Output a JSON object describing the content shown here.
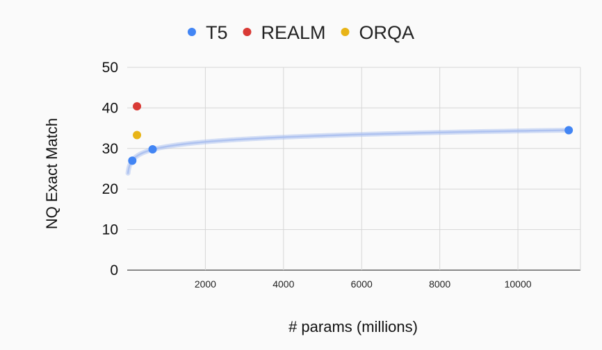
{
  "chart_data": {
    "type": "scatter",
    "xlabel": "# params (millions)",
    "ylabel": "NQ Exact Match",
    "xlim": [
      0,
      11600
    ],
    "ylim": [
      0,
      50
    ],
    "x_ticks": [
      2000,
      4000,
      6000,
      8000,
      10000
    ],
    "y_ticks": [
      0,
      10,
      20,
      30,
      40,
      50
    ],
    "x_tick_labels": [
      "2000",
      "4000",
      "6000",
      "8000",
      "10000"
    ],
    "y_tick_labels": [
      "0",
      "10",
      "20",
      "30",
      "40",
      "50"
    ],
    "grid": true,
    "legend_position": "top-center",
    "series": [
      {
        "name": "T5",
        "color": "#4285f4",
        "points": [
          {
            "x": 130,
            "y": 27.0
          },
          {
            "x": 650,
            "y": 29.8
          },
          {
            "x": 11300,
            "y": 34.5
          }
        ]
      },
      {
        "name": "REALM",
        "color": "#d93a35",
        "points": [
          {
            "x": 250,
            "y": 40.4
          }
        ]
      },
      {
        "name": "ORQA",
        "color": "#e8b417",
        "points": [
          {
            "x": 250,
            "y": 33.3
          }
        ]
      }
    ],
    "trendline": {
      "type": "logarithmic",
      "series": "T5",
      "color": "#aabff0"
    }
  }
}
